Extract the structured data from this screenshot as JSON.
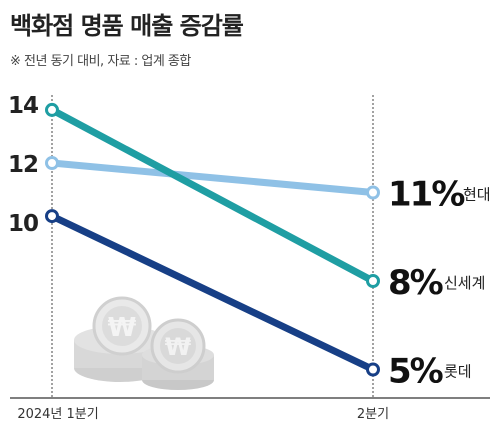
{
  "title": "백화점 명품 매출 증감률",
  "subtitle": "※ 전년 동기 대비, 자료 : 업계 종합",
  "chart_data": {
    "type": "line",
    "title": "백화점 명품 매출 증감률",
    "subtitle": "※ 전년 동기 대비, 자료 : 업계 종합",
    "categories": [
      "2024년 1분기",
      "2분기"
    ],
    "y_ticks": [
      10,
      12,
      14
    ],
    "ylim": [
      4,
      14.5
    ],
    "grid": false,
    "series": [
      {
        "name": "현대",
        "values": [
          12,
          11
        ],
        "end_label": "11%",
        "color": "#8fc1e6"
      },
      {
        "name": "신세계",
        "values": [
          13.8,
          8
        ],
        "end_label": "8%",
        "color": "#1f9ea3"
      },
      {
        "name": "롯데",
        "values": [
          10.2,
          5
        ],
        "end_label": "5%",
        "color": "#173f86"
      }
    ]
  }
}
